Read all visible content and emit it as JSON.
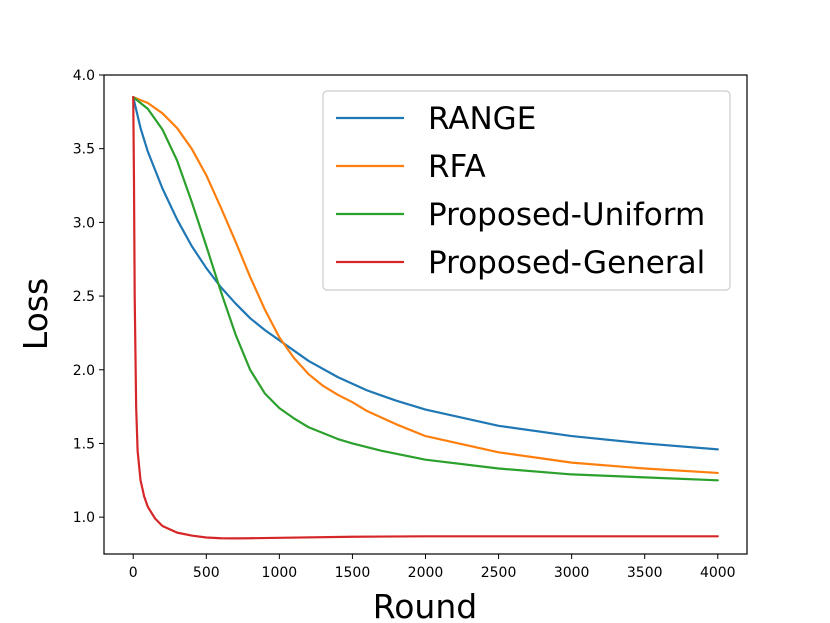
{
  "chart_data": {
    "type": "line",
    "xlabel": "Round",
    "ylabel": "Loss",
    "xlim": [
      -200,
      4200
    ],
    "ylim": [
      0.75,
      4.0
    ],
    "xticks": [
      0,
      500,
      1000,
      1500,
      2000,
      2500,
      3000,
      3500,
      4000
    ],
    "xtick_labels": [
      "0",
      "500",
      "1000",
      "1500",
      "2000",
      "2500",
      "3000",
      "3500",
      "4000"
    ],
    "yticks": [
      1.0,
      1.5,
      2.0,
      2.5,
      3.0,
      3.5,
      4.0
    ],
    "ytick_labels": [
      "1.0",
      "1.5",
      "2.0",
      "2.5",
      "3.0",
      "3.5",
      "4.0"
    ],
    "grid": false,
    "legend_position": "top-right",
    "series": [
      {
        "name": "RANGE",
        "color": "#1f77b4",
        "x": [
          0,
          50,
          100,
          200,
          300,
          400,
          500,
          600,
          700,
          800,
          900,
          1000,
          1200,
          1400,
          1600,
          1800,
          2000,
          2500,
          3000,
          3500,
          4000
        ],
        "y": [
          3.85,
          3.64,
          3.48,
          3.23,
          3.02,
          2.84,
          2.69,
          2.56,
          2.45,
          2.35,
          2.27,
          2.2,
          2.06,
          1.95,
          1.86,
          1.79,
          1.73,
          1.62,
          1.55,
          1.5,
          1.46
        ]
      },
      {
        "name": "RFA",
        "color": "#ff7f0e",
        "x": [
          0,
          100,
          200,
          300,
          400,
          500,
          600,
          700,
          800,
          900,
          1000,
          1100,
          1200,
          1300,
          1400,
          1500,
          1600,
          1800,
          2000,
          2500,
          3000,
          3500,
          4000
        ],
        "y": [
          3.85,
          3.81,
          3.74,
          3.64,
          3.5,
          3.32,
          3.1,
          2.87,
          2.63,
          2.41,
          2.22,
          2.08,
          1.97,
          1.89,
          1.83,
          1.78,
          1.72,
          1.63,
          1.55,
          1.44,
          1.37,
          1.33,
          1.3
        ]
      },
      {
        "name": "Proposed-Uniform",
        "color": "#2ca02c",
        "x": [
          0,
          100,
          200,
          300,
          400,
          500,
          600,
          700,
          800,
          900,
          1000,
          1100,
          1200,
          1300,
          1400,
          1500,
          1700,
          2000,
          2500,
          3000,
          3500,
          4000
        ],
        "y": [
          3.85,
          3.77,
          3.63,
          3.42,
          3.14,
          2.84,
          2.53,
          2.24,
          2.0,
          1.84,
          1.74,
          1.67,
          1.61,
          1.57,
          1.53,
          1.5,
          1.45,
          1.39,
          1.33,
          1.29,
          1.27,
          1.25
        ]
      },
      {
        "name": "Proposed-General",
        "color": "#d62728",
        "x": [
          0,
          5,
          10,
          20,
          30,
          50,
          75,
          100,
          150,
          200,
          300,
          400,
          500,
          600,
          700,
          800,
          1000,
          1500,
          2000,
          3000,
          4000
        ],
        "y": [
          3.85,
          3.3,
          2.5,
          1.75,
          1.45,
          1.25,
          1.14,
          1.07,
          0.99,
          0.94,
          0.895,
          0.875,
          0.862,
          0.857,
          0.856,
          0.857,
          0.86,
          0.867,
          0.87,
          0.87,
          0.87
        ]
      }
    ]
  }
}
